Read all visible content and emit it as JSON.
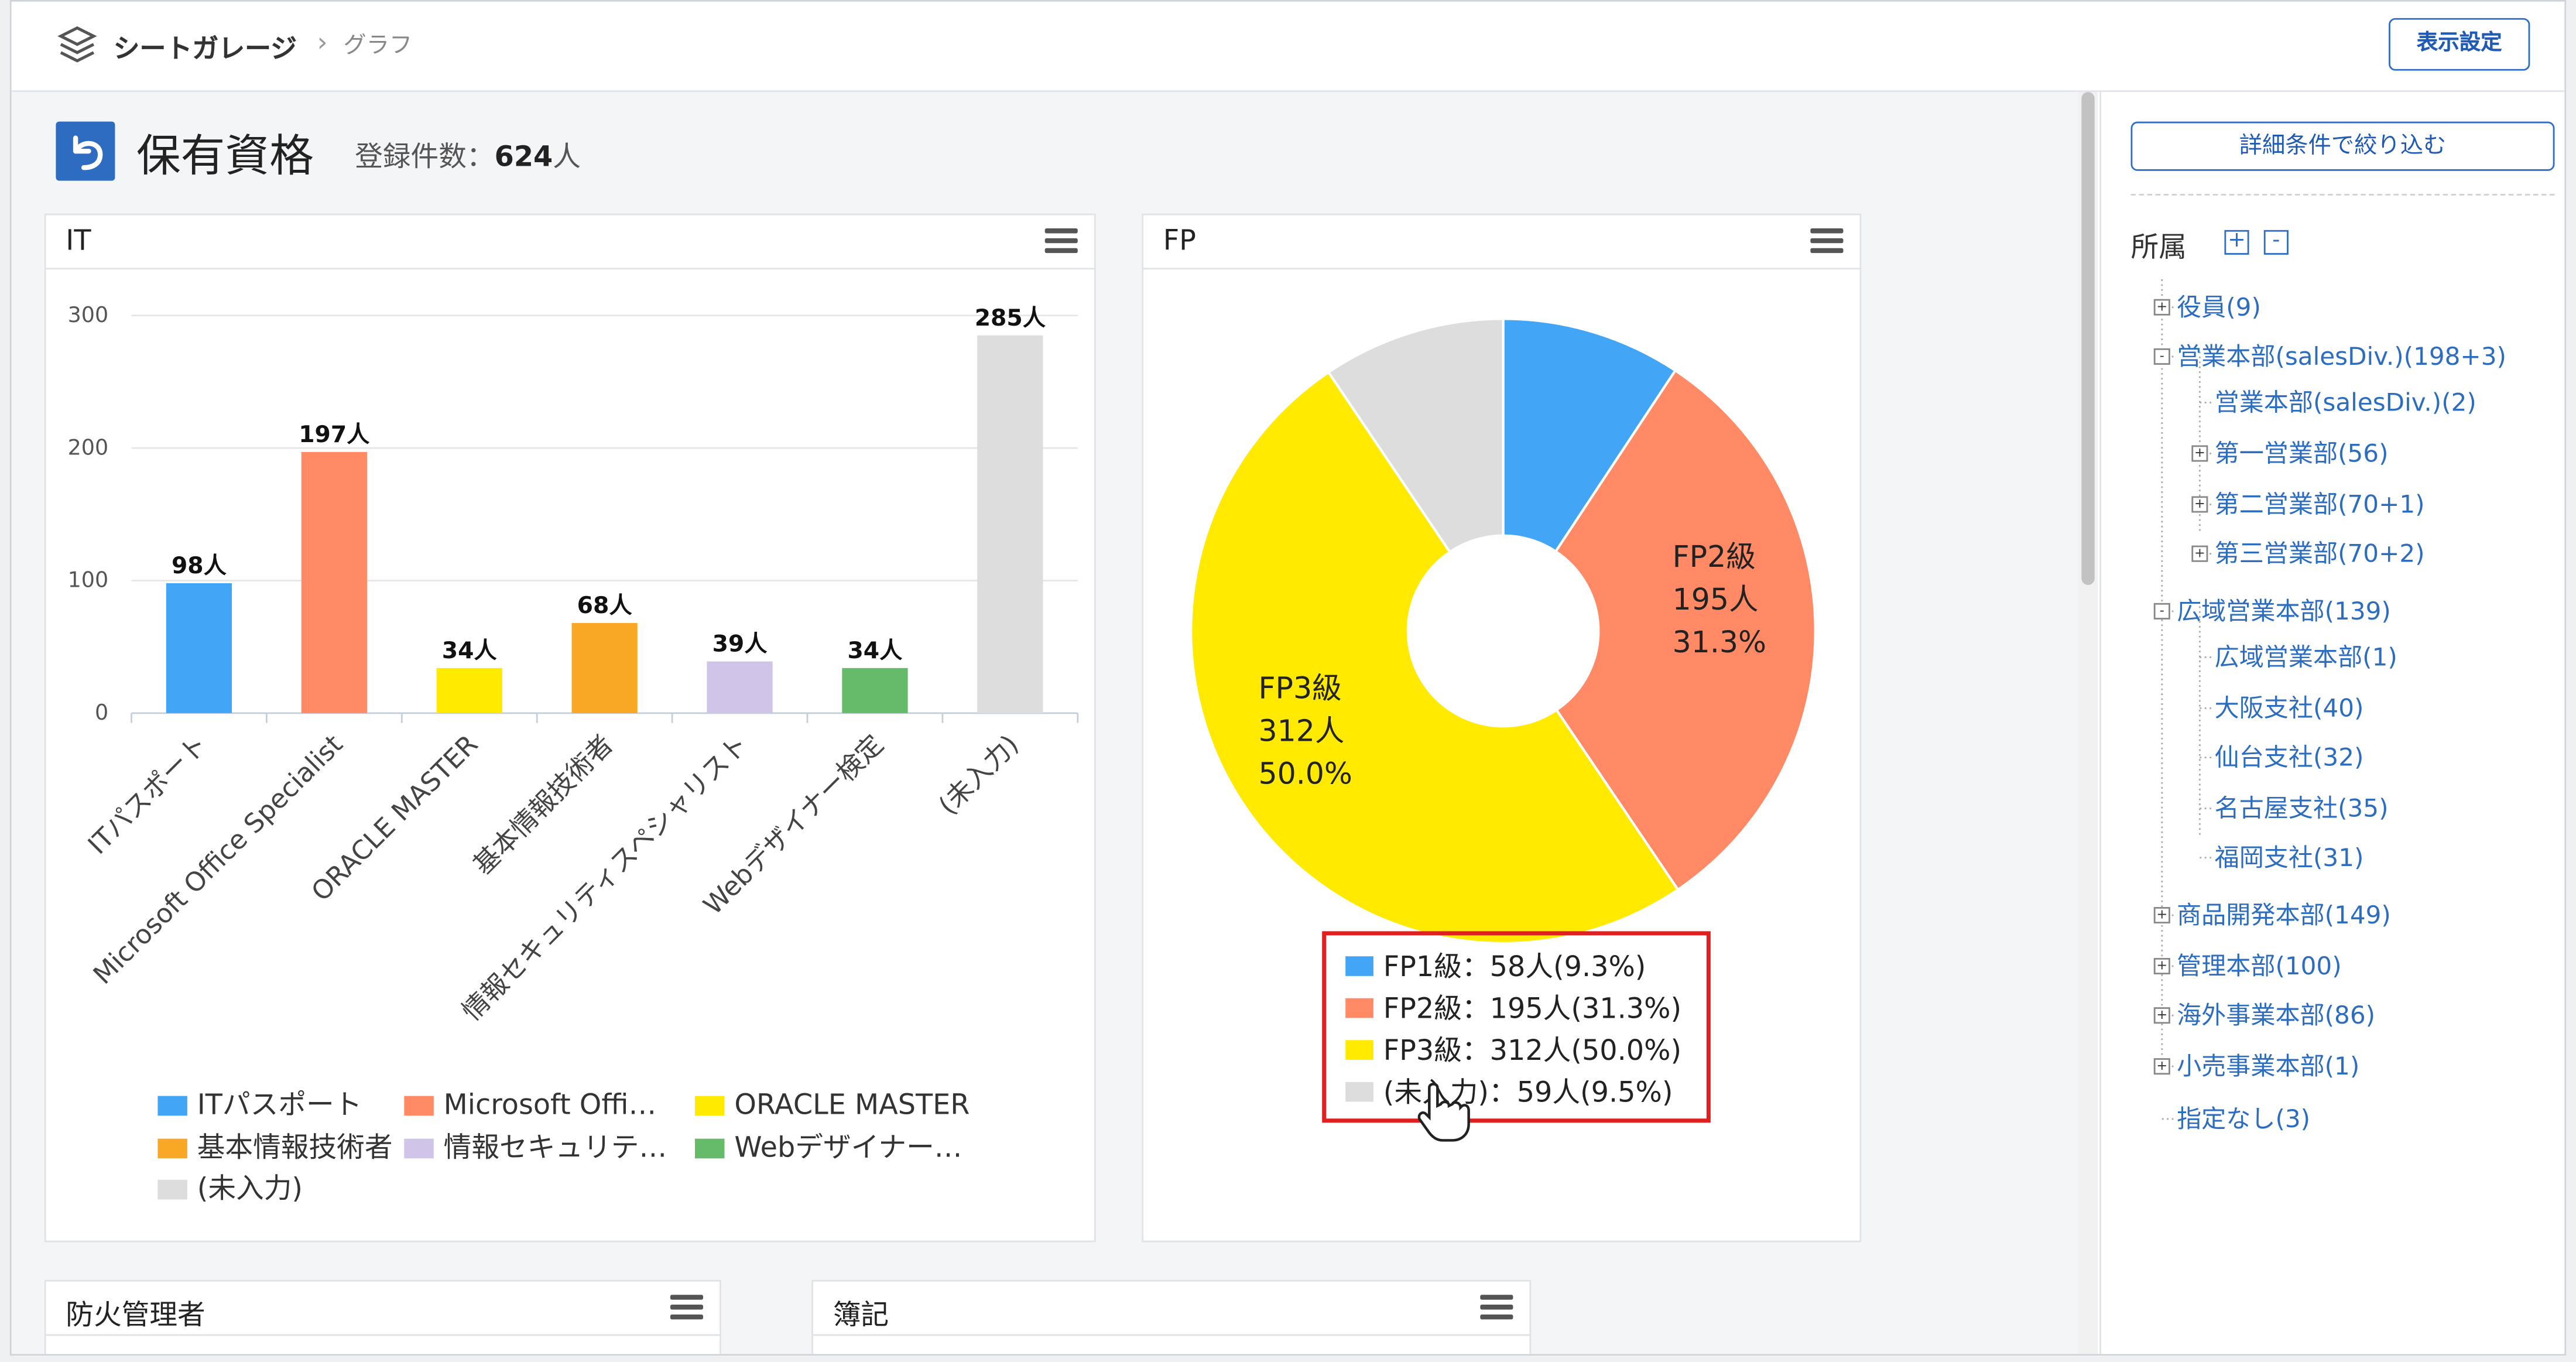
{
  "header": {
    "app_name": "シートガレージ",
    "separator": "›",
    "current_page": "グラフ",
    "display_settings_button": "表示設定"
  },
  "page": {
    "title": "保有資格",
    "count_label": "登録件数：",
    "count_value": "624",
    "count_unit": "人"
  },
  "panels": {
    "it": {
      "title": "IT"
    },
    "fp": {
      "title": "FP"
    },
    "fire": {
      "title": "防火管理者"
    },
    "boki": {
      "title": "簿記"
    }
  },
  "chart_data": [
    {
      "type": "bar",
      "title": "IT",
      "categories": [
        "ITパスポート",
        "Microsoft Office Specialist",
        "ORACLE MASTER",
        "基本情報技術者",
        "情報セキュリティスペシャリスト",
        "Webデザイナー検定",
        "(未入力)"
      ],
      "values": [
        98,
        197,
        34,
        68,
        39,
        34,
        285
      ],
      "value_labels": [
        "98人",
        "197人",
        "34人",
        "68人",
        "39人",
        "34人",
        "285人"
      ],
      "colors": [
        "#42a5f5",
        "#ff8a65",
        "#ffea00",
        "#f9a825",
        "#d1c4e9",
        "#66bb6a",
        "#dddddd"
      ],
      "ylim": [
        0,
        300
      ],
      "yticks": [
        0,
        100,
        200,
        300
      ],
      "ytick_labels": [
        "0",
        "100",
        "200",
        "300"
      ],
      "legend": [
        "ITパスポート",
        "Microsoft Offi…",
        "ORACLE MASTER",
        "基本情報技術者",
        "情報セキュリテ…",
        "Webデザイナー…",
        "(未入力)"
      ],
      "legend_position": "bottom"
    },
    {
      "type": "pie",
      "title": "FP",
      "categories": [
        "FP1級",
        "FP2級",
        "FP3級",
        "(未入力)"
      ],
      "values": [
        58,
        195,
        312,
        59
      ],
      "percents": [
        9.3,
        31.3,
        50.0,
        9.5
      ],
      "colors": [
        "#42a5f5",
        "#ff8a65",
        "#ffea00",
        "#dddddd"
      ],
      "slice_labels": {
        "fp2": [
          "FP2級",
          "195人",
          "31.3%"
        ],
        "fp3": [
          "FP3級",
          "312人",
          "50.0%"
        ]
      },
      "legend": [
        "FP1級：58人(9.3%)",
        "FP2級：195人(31.3%)",
        "FP3級：312人(50.0%)",
        "(未入力)：59人(9.5%)"
      ],
      "legend_position": "bottom"
    }
  ],
  "sidebar": {
    "filter_button": "詳細条件で絞り込む",
    "tree_title": "所属",
    "expand_all": "+",
    "collapse_all": "-",
    "tree": [
      {
        "label": "役員(9)",
        "toggle": "+"
      },
      {
        "label": "営業本部(salesDiv.)(198+3)",
        "toggle": "-"
      },
      {
        "label": "営業本部(salesDiv.)(2)",
        "toggle": ""
      },
      {
        "label": "第一営業部(56)",
        "toggle": "+"
      },
      {
        "label": "第二営業部(70+1)",
        "toggle": "+"
      },
      {
        "label": "第三営業部(70+2)",
        "toggle": "+"
      },
      {
        "label": "広域営業本部(139)",
        "toggle": "-"
      },
      {
        "label": "広域営業本部(1)",
        "toggle": ""
      },
      {
        "label": "大阪支社(40)",
        "toggle": ""
      },
      {
        "label": "仙台支社(32)",
        "toggle": ""
      },
      {
        "label": "名古屋支社(35)",
        "toggle": ""
      },
      {
        "label": "福岡支社(31)",
        "toggle": ""
      },
      {
        "label": "商品開発本部(149)",
        "toggle": "+"
      },
      {
        "label": "管理本部(100)",
        "toggle": "+"
      },
      {
        "label": "海外事業本部(86)",
        "toggle": "+"
      },
      {
        "label": "小売事業本部(1)",
        "toggle": "+"
      },
      {
        "label": "指定なし(3)",
        "toggle": ""
      }
    ]
  },
  "icons": {
    "app": "layers-icon",
    "back": "back-arrow-icon",
    "menu": "hamburger-menu-icon",
    "cursor": "hand-pointer-icon"
  },
  "colors": {
    "accent": "#2f6ec4",
    "back_button": "#2d6cc0",
    "highlight_box": "#e02020",
    "tree_link": "#2c6dbf"
  }
}
